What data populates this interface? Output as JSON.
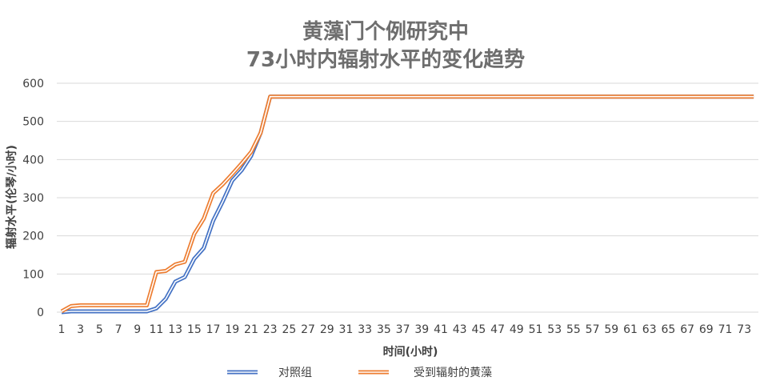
{
  "chart_data": {
    "type": "line",
    "title_line1": "黄藻门个例研究中",
    "title_line2": "73小时内辐射水平的变化趋势",
    "xlabel": "时间(小时)",
    "ylabel": "辐射水平(伦琴/小时)",
    "ylim": [
      0,
      600
    ],
    "yticks": [
      "0",
      "100",
      "200",
      "300",
      "400",
      "500",
      "600"
    ],
    "xlim": [
      1,
      74
    ],
    "xticks": [
      "1",
      "3",
      "5",
      "7",
      "9",
      "11",
      "13",
      "15",
      "17",
      "19",
      "21",
      "23",
      "25",
      "27",
      "29",
      "31",
      "33",
      "35",
      "37",
      "39",
      "41",
      "43",
      "45",
      "47",
      "49",
      "51",
      "53",
      "55",
      "57",
      "59",
      "61",
      "63",
      "65",
      "67",
      "69",
      "71",
      "73"
    ],
    "grid": "horizontal",
    "legend_position": "bottom",
    "series": [
      {
        "name": "对照组",
        "color": "#4472c4",
        "x": [
          1,
          2,
          3,
          4,
          5,
          6,
          7,
          8,
          9,
          10,
          11,
          12,
          13,
          14,
          15,
          16,
          17,
          18,
          19,
          20,
          21,
          22,
          23,
          24,
          74
        ],
        "values": [
          0,
          2,
          2,
          2,
          2,
          2,
          2,
          2,
          2,
          2,
          10,
          35,
          80,
          92,
          140,
          168,
          240,
          290,
          345,
          372,
          410,
          470,
          565,
          565,
          565
        ]
      },
      {
        "name": "受到辐射的黄藻",
        "color": "#ed7d31",
        "x": [
          1,
          2,
          3,
          4,
          5,
          6,
          7,
          8,
          9,
          10,
          11,
          12,
          13,
          14,
          15,
          16,
          17,
          18,
          19,
          20,
          21,
          22,
          23,
          24,
          74
        ],
        "values": [
          2,
          16,
          18,
          18,
          18,
          18,
          18,
          18,
          18,
          18,
          105,
          108,
          125,
          132,
          205,
          245,
          312,
          335,
          362,
          390,
          420,
          470,
          565,
          565,
          565
        ]
      }
    ]
  }
}
